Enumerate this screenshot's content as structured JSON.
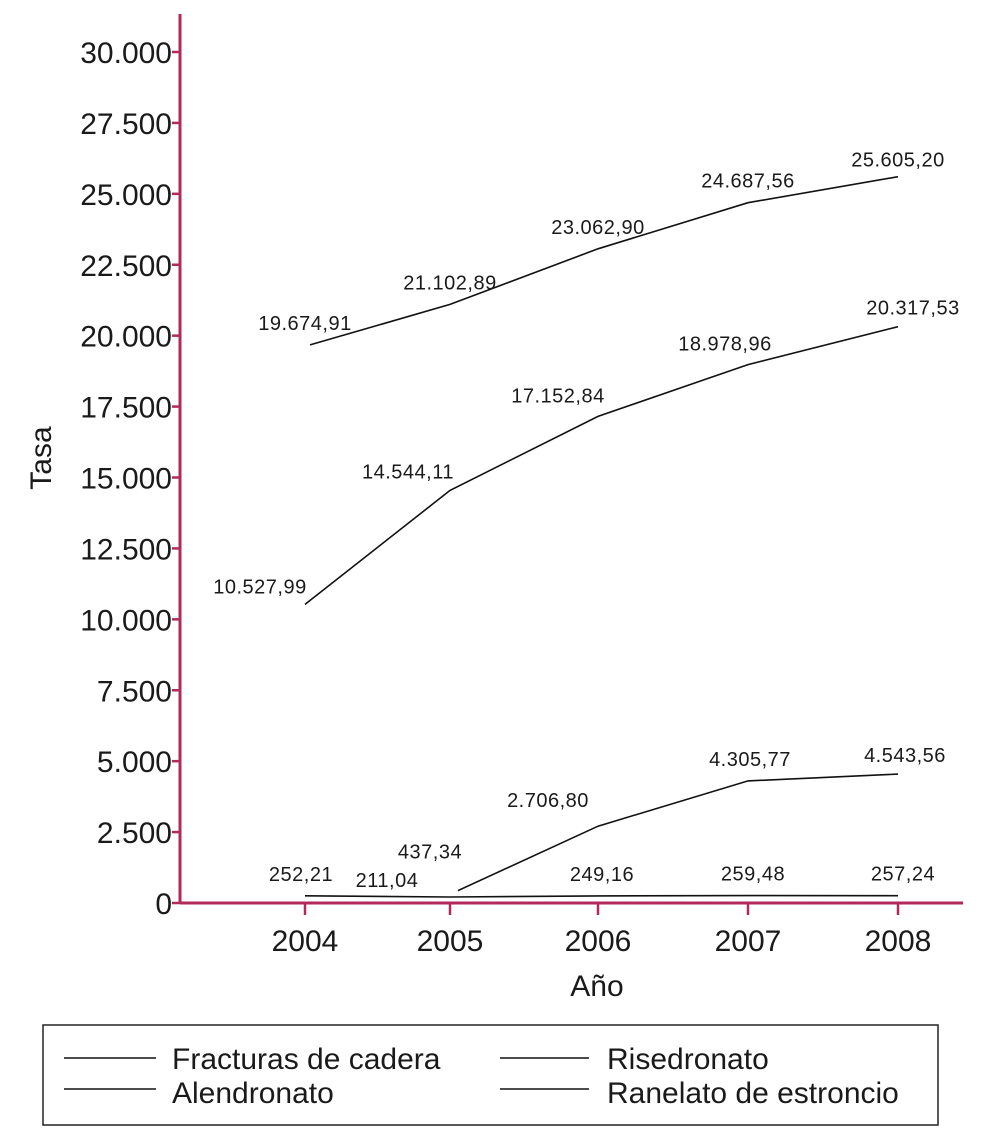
{
  "colors": {
    "axis": "#b22a5a",
    "line": "#111111",
    "legend_border": "#222222"
  },
  "chart_data": {
    "type": "line",
    "x": [
      "2004",
      "2005",
      "2006",
      "2007",
      "2008"
    ],
    "xlabel": "Año",
    "ylabel": "Tasa",
    "ylim": [
      0,
      30000
    ],
    "yticks": [
      0,
      2500,
      5000,
      7500,
      10000,
      12500,
      15000,
      17500,
      20000,
      22500,
      25000,
      27500,
      30000
    ],
    "ytick_labels": [
      "0",
      "2.500",
      "5.000",
      "7.500",
      "10.000",
      "12.500",
      "15.000",
      "17.500",
      "20.000",
      "22.500",
      "25.000",
      "27.500",
      "30.000"
    ],
    "grid": false,
    "legend_placement": "bottom",
    "series": [
      {
        "name": "Fracturas de cadera",
        "values": [
          19674.91,
          21102.89,
          23062.9,
          24687.56,
          25605.2
        ],
        "labels": [
          "19.674,91",
          "21.102,89",
          "23.062,90",
          "24.687,56",
          "25.605,20"
        ]
      },
      {
        "name": "Alendronato",
        "values": [
          10527.99,
          14544.11,
          17152.84,
          18978.96,
          20317.53
        ],
        "labels": [
          "10.527,99",
          "14.544,11",
          "17.152,84",
          "18.978,96",
          "20.317,53"
        ]
      },
      {
        "name": "Risedronato",
        "values": [
          null,
          437.34,
          2706.8,
          4305.77,
          4543.56
        ],
        "labels": [
          null,
          "437,34",
          "2.706,80",
          "4.305,77",
          "4.543,56"
        ]
      },
      {
        "name": "Ranelato de estroncio",
        "values": [
          252.21,
          211.04,
          249.16,
          259.48,
          257.24
        ],
        "labels": [
          "252,21",
          "211,04",
          "249,16",
          "259,48",
          "257,24"
        ]
      }
    ]
  }
}
